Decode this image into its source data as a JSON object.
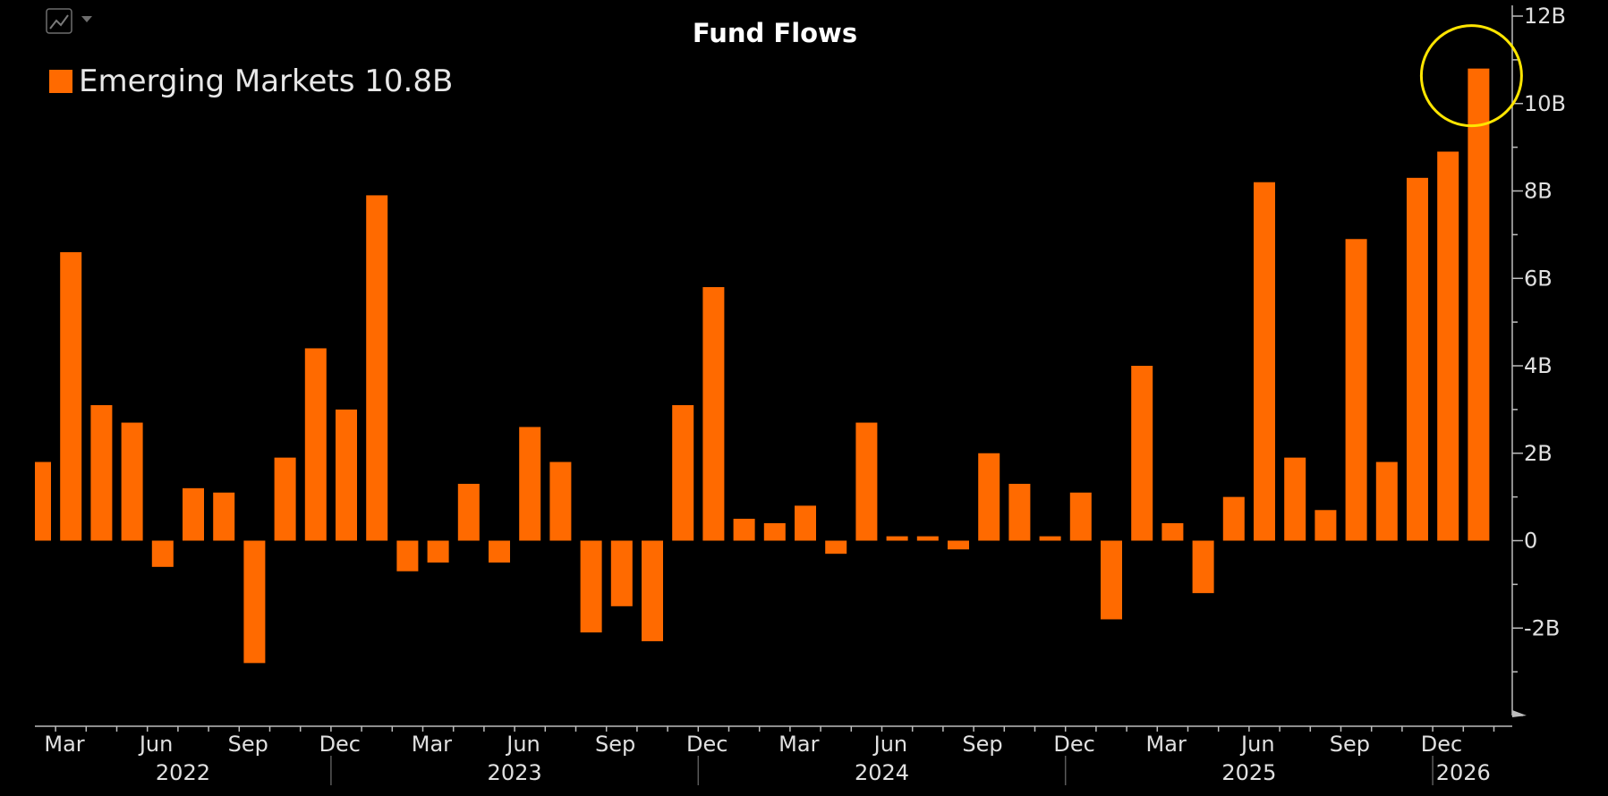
{
  "toolbar": {
    "chart_type_icon": "line-chart-icon",
    "dropdown_icon": "caret-down-icon"
  },
  "chart_data": {
    "type": "bar",
    "title": "Fund Flows",
    "legend": {
      "position": "top-left",
      "label": "Emerging Markets 10.8B",
      "color": "#FF6A00"
    },
    "annotation": {
      "type": "circle",
      "color": "#FFE500",
      "target": "last-bar"
    },
    "ylim": [
      -4,
      12
    ],
    "yticks": [
      {
        "value": 12,
        "label": "12B"
      },
      {
        "value": 10,
        "label": "10B"
      },
      {
        "value": 8,
        "label": "8B"
      },
      {
        "value": 6,
        "label": "6B"
      },
      {
        "value": 4,
        "label": "4B"
      },
      {
        "value": 2,
        "label": "2B"
      },
      {
        "value": 0,
        "label": "0"
      },
      {
        "value": -2,
        "label": "-2B"
      }
    ],
    "month_labels": [
      "Mar",
      "Jun",
      "Sep",
      "Dec",
      "Mar",
      "Jun",
      "Sep",
      "Dec",
      "Mar",
      "Jun",
      "Sep",
      "Dec",
      "Mar",
      "Jun",
      "Sep",
      "Dec"
    ],
    "year_labels": [
      "2022",
      "2023",
      "2024",
      "2025",
      "2026"
    ],
    "series": [
      {
        "name": "Emerging Markets",
        "color": "#FF6A00",
        "values": [
          1.8,
          6.6,
          3.1,
          2.7,
          -0.6,
          1.2,
          1.1,
          -2.8,
          1.9,
          4.4,
          3.0,
          7.9,
          -0.7,
          -0.5,
          1.3,
          -0.5,
          2.6,
          1.8,
          -2.1,
          -1.5,
          -2.3,
          3.1,
          5.8,
          0.5,
          0.4,
          0.8,
          -0.3,
          2.7,
          0.1,
          0.1,
          -0.2,
          2.0,
          1.3,
          0.1,
          1.1,
          -1.8,
          4.0,
          0.4,
          -1.2,
          1.0,
          8.2,
          1.9,
          0.7,
          6.9,
          1.8,
          8.3,
          8.9,
          10.8
        ]
      }
    ]
  }
}
